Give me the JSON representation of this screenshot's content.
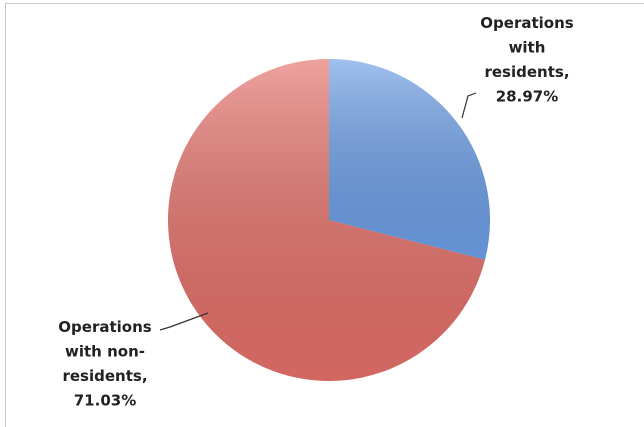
{
  "chart_data": {
    "type": "pie",
    "categories": [
      "Operations with residents,",
      "Operations with non-residents,"
    ],
    "values": [
      28.97,
      71.03
    ],
    "value_labels": [
      "28.97%",
      "71.03%"
    ],
    "colors": [
      "#6d9fe6",
      "#e5706a"
    ]
  }
}
